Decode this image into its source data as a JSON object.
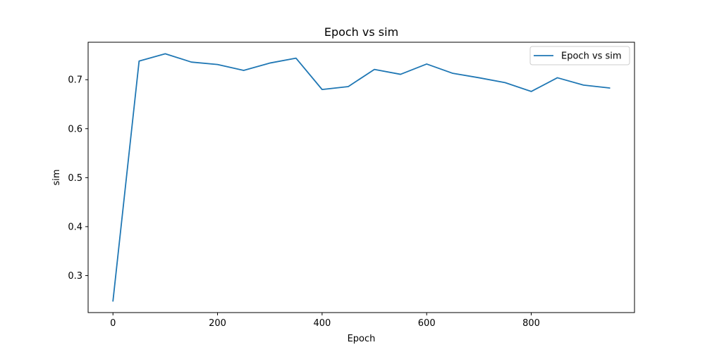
{
  "chart_data": {
    "type": "line",
    "title": "Epoch vs sim",
    "xlabel": "Epoch",
    "ylabel": "sim",
    "xlim": [
      -47.5,
      997.5
    ],
    "ylim": [
      0.2245,
      0.7765
    ],
    "xticks": [
      0,
      200,
      400,
      600,
      800
    ],
    "yticks": [
      0.3,
      0.4,
      0.5,
      0.6,
      0.7
    ],
    "grid": false,
    "legend_position": "top-right",
    "series": [
      {
        "name": "Epoch vs sim",
        "color": "#1f77b4",
        "x": [
          0,
          50,
          100,
          150,
          200,
          250,
          300,
          350,
          400,
          450,
          500,
          550,
          600,
          650,
          700,
          750,
          800,
          850,
          900,
          950
        ],
        "y": [
          0.248,
          0.738,
          0.753,
          0.736,
          0.731,
          0.719,
          0.734,
          0.744,
          0.68,
          0.686,
          0.721,
          0.711,
          0.732,
          0.713,
          0.704,
          0.694,
          0.676,
          0.704,
          0.689,
          0.683
        ]
      }
    ]
  }
}
